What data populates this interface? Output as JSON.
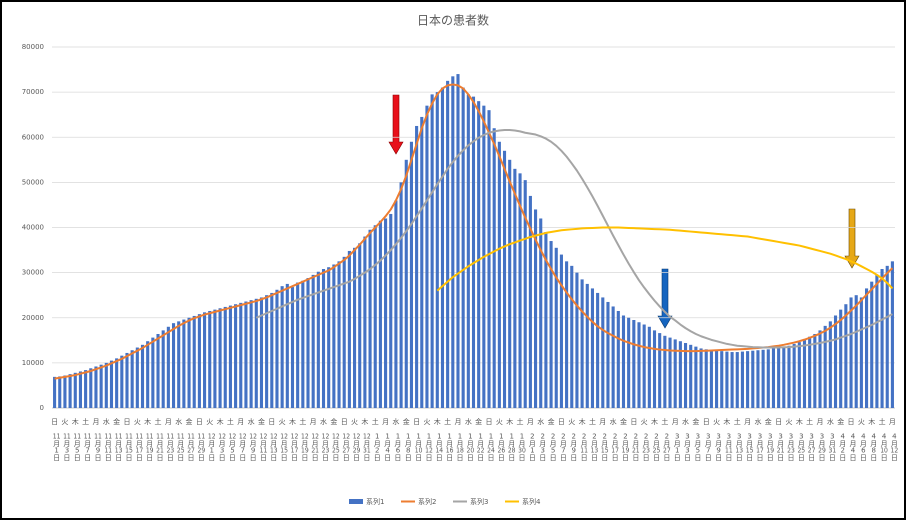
{
  "chart_data": {
    "type": "bar",
    "title": "日本の患者数",
    "categories": [
      "11月1日",
      null,
      "11月3日",
      null,
      "11月5日",
      null,
      "11月7日",
      null,
      "11月9日",
      null,
      "11月11日",
      null,
      "11月13日",
      null,
      "11月15日",
      null,
      "11月17日",
      null,
      "11月19日",
      null,
      "11月21日",
      null,
      "11月23日",
      null,
      "11月25日",
      null,
      "11月27日",
      null,
      "11月29日",
      null,
      "12月1日",
      null,
      "12月3日",
      null,
      "12月5日",
      null,
      "12月7日",
      null,
      "12月9日",
      null,
      "12月11日",
      null,
      "12月13日",
      null,
      "12月15日",
      null,
      "12月17日",
      null,
      "12月19日",
      null,
      "12月21日",
      null,
      "12月23日",
      null,
      "12月25日",
      null,
      "12月27日",
      null,
      "12月29日",
      null,
      "12月31日",
      null,
      "1月2日",
      null,
      "1月4日",
      null,
      "1月6日",
      null,
      "1月8日",
      null,
      "1月10日",
      null,
      "1月12日",
      null,
      "1月14日",
      null,
      "1月16日",
      null,
      "1月18日",
      null,
      "1月20日",
      null,
      "1月22日",
      null,
      "1月24日",
      null,
      "1月26日",
      null,
      "1月28日",
      null,
      "1月30日",
      null,
      "2月1日",
      null,
      "2月3日",
      null,
      "2月5日",
      null,
      "2月7日",
      null,
      "2月9日",
      null,
      "2月11日",
      null,
      "2月13日",
      null,
      "2月15日",
      null,
      "2月17日",
      null,
      "2月19日",
      null,
      "2月21日",
      null,
      "2月23日",
      null,
      "2月25日",
      null,
      "2月27日",
      null,
      "3月1日",
      null,
      "3月3日",
      null,
      "3月5日",
      null,
      "3月7日",
      null,
      "3月9日",
      null,
      "3月11日",
      null,
      "3月13日",
      null,
      "3月15日",
      null,
      "3月17日",
      null,
      "3月19日",
      null,
      "3月21日",
      null,
      "3月23日",
      null,
      "3月25日",
      null,
      "3月27日",
      null,
      "3月29日",
      null,
      "3月31日",
      null,
      "4月2日",
      null,
      "4月4日",
      null,
      "4月6日",
      null,
      "4月8日",
      null,
      "4月10日",
      null,
      "4月12日"
    ],
    "weekdays": [
      "日",
      null,
      "火",
      null,
      "木",
      null,
      "土",
      null,
      "月",
      null,
      "水",
      null,
      "金",
      null,
      "日",
      null,
      "火",
      null,
      "木",
      null,
      "土",
      null,
      "月",
      null,
      "水",
      null,
      "金",
      null,
      "日",
      null,
      "火",
      null,
      "木",
      null,
      "土",
      null,
      "月",
      null,
      "水",
      null,
      "金",
      null,
      "日",
      null,
      "火",
      null,
      "木",
      null,
      "土",
      null,
      "月",
      null,
      "水",
      null,
      "金",
      null,
      "日",
      null,
      "火",
      null,
      "木",
      null,
      "土",
      null,
      "月",
      null,
      "水",
      null,
      "金",
      null,
      "日",
      null,
      "火",
      null,
      "木",
      null,
      "土",
      null,
      "月",
      null,
      "水",
      null,
      "金",
      null,
      "日",
      null,
      "火",
      null,
      "木",
      null,
      "土",
      null,
      "月",
      null,
      "水",
      null,
      "金",
      null,
      "日",
      null,
      "火",
      null,
      "木",
      null,
      "土",
      null,
      "月",
      null,
      "水",
      null,
      "金",
      null,
      "日",
      null,
      "火",
      null,
      "木",
      null,
      "土",
      null,
      "月",
      null,
      "水",
      null,
      "金",
      null,
      "日",
      null,
      "火",
      null,
      "木",
      null,
      "土",
      null,
      "月",
      null,
      "水",
      null,
      "金",
      null,
      "日",
      null,
      "火",
      null,
      "木",
      null,
      "土",
      null,
      "月",
      null,
      "水",
      null,
      "金",
      null,
      "日",
      null,
      "火",
      null,
      "木",
      null,
      "土",
      null,
      "月"
    ],
    "series": [
      {
        "name": "系列1",
        "type": "bar",
        "color": "#4472c4",
        "values": [
          6900,
          7000,
          7200,
          7500,
          7800,
          8100,
          8400,
          8800,
          9200,
          9600,
          10000,
          10500,
          11000,
          11600,
          12200,
          12800,
          13400,
          14000,
          14800,
          15600,
          16400,
          17200,
          18000,
          18800,
          19200,
          19600,
          20000,
          20400,
          20800,
          21200,
          21500,
          21800,
          22100,
          22400,
          22700,
          23000,
          23300,
          23600,
          23900,
          24200,
          24500,
          25000,
          25500,
          26200,
          27000,
          27500,
          26800,
          27800,
          28200,
          28800,
          29500,
          30200,
          30800,
          31200,
          31800,
          32500,
          33500,
          34800,
          35500,
          36500,
          38000,
          39500,
          40500,
          41500,
          42000,
          43000,
          46000,
          50000,
          55000,
          59000,
          62500,
          64500,
          67000,
          69500,
          70000,
          71000,
          72500,
          73500,
          74000,
          71000,
          69500,
          69000,
          68000,
          67000,
          66000,
          62000,
          59000,
          57000,
          55000,
          53000,
          52000,
          50500,
          47000,
          44000,
          42000,
          39000,
          37000,
          35500,
          34000,
          32500,
          31500,
          30000,
          28500,
          27500,
          26500,
          25500,
          24500,
          23500,
          22500,
          21500,
          20500,
          20000,
          19500,
          19000,
          18500,
          18000,
          17200,
          16600,
          16000,
          15600,
          15200,
          14800,
          14400,
          14000,
          13600,
          13200,
          13000,
          12800,
          12700,
          12600,
          12500,
          12400,
          12400,
          12500,
          12600,
          12700,
          12800,
          12900,
          13000,
          13200,
          13400,
          13600,
          13800,
          14200,
          14600,
          15200,
          15800,
          16400,
          17200,
          18200,
          19200,
          20500,
          21800,
          23000,
          24500,
          25000,
          24500,
          26500,
          28000,
          29500,
          30800,
          31500,
          32500
        ]
      },
      {
        "name": "系列2",
        "type": "line",
        "color": "#ed7d31",
        "values": [
          6500,
          6700,
          6900,
          7100,
          7300,
          7600,
          7900,
          8200,
          8600,
          9000,
          9400,
          9900,
          10400,
          10900,
          11500,
          12100,
          12700,
          13300,
          14000,
          14700,
          15400,
          16100,
          16800,
          17500,
          18200,
          18800,
          19400,
          19900,
          20300,
          20700,
          21000,
          21300,
          21600,
          21900,
          22200,
          22500,
          22800,
          23100,
          23400,
          23700,
          24100,
          24500,
          25000,
          25500,
          26000,
          26500,
          27000,
          27500,
          28000,
          28500,
          29000,
          29500,
          30000,
          30500,
          31200,
          32000,
          32800,
          33800,
          35000,
          36200,
          37500,
          38800,
          40000,
          41200,
          42500,
          44000,
          46000,
          48500,
          51500,
          55000,
          58500,
          62000,
          65000,
          67500,
          69500,
          70800,
          71500,
          71700,
          71500,
          70800,
          69500,
          67800,
          65800,
          63500,
          61000,
          58500,
          55800,
          53000,
          50200,
          47500,
          44800,
          42200,
          39700,
          37300,
          35000,
          32800,
          30800,
          28900,
          27200,
          25600,
          24100,
          22700,
          21400,
          20200,
          19100,
          18100,
          17300,
          16600,
          16000,
          15400,
          14900,
          14500,
          14100,
          13800,
          13500,
          13300,
          13100,
          12950,
          12850,
          12750,
          12700,
          12650,
          12600,
          12600,
          12600,
          12650,
          12700,
          12750,
          12800,
          12850,
          12900,
          12950,
          13000,
          13050,
          13100,
          13200,
          13300,
          13400,
          13500,
          13650,
          13800,
          14000,
          14250,
          14500,
          14800,
          15150,
          15550,
          16000,
          16500,
          17100,
          17800,
          18600,
          19500,
          20500,
          21600,
          22700,
          23900,
          25100,
          26300,
          27500,
          28700,
          29900,
          31000
        ]
      },
      {
        "name": "系列3",
        "type": "line",
        "color": "#a5a5a5",
        "values": [
          null,
          null,
          null,
          null,
          null,
          null,
          null,
          null,
          null,
          null,
          null,
          null,
          null,
          null,
          null,
          null,
          null,
          null,
          null,
          null,
          null,
          null,
          null,
          null,
          null,
          null,
          null,
          null,
          null,
          null,
          null,
          null,
          null,
          null,
          null,
          null,
          null,
          null,
          null,
          20000,
          20500,
          21000,
          21500,
          22000,
          22500,
          23000,
          23500,
          24000,
          24400,
          24800,
          25200,
          25600,
          26000,
          26400,
          26800,
          27200,
          27600,
          28000,
          28600,
          29300,
          30000,
          30800,
          31700,
          32700,
          33800,
          35000,
          36300,
          37700,
          39200,
          40800,
          42500,
          44200,
          46000,
          47800,
          49600,
          51300,
          53000,
          54500,
          55900,
          57100,
          58200,
          59100,
          59900,
          60500,
          61000,
          61300,
          61500,
          61600,
          61600,
          61500,
          61300,
          61000,
          60800,
          60600,
          60200,
          59700,
          59000,
          58100,
          57000,
          55700,
          54200,
          52600,
          50800,
          48900,
          46900,
          44800,
          42600,
          40400,
          38200,
          36100,
          34000,
          32000,
          30100,
          28300,
          26700,
          25200,
          23800,
          22500,
          21300,
          20200,
          19400,
          18500,
          17700,
          17000,
          16400,
          15900,
          15500,
          15100,
          14800,
          14500,
          14200,
          14000,
          13800,
          13700,
          13600,
          13500,
          13450,
          13400,
          13400,
          13400,
          13400,
          13450,
          13500,
          13600,
          13700,
          13850,
          14000,
          14200,
          14400,
          14650,
          14900,
          15200,
          15600,
          16000,
          16400,
          16900,
          17400,
          17900,
          18400,
          19000,
          19600,
          20200,
          20800
        ]
      },
      {
        "name": "系列4",
        "type": "line",
        "color": "#ffc000",
        "values": [
          null,
          null,
          null,
          null,
          null,
          null,
          null,
          null,
          null,
          null,
          null,
          null,
          null,
          null,
          null,
          null,
          null,
          null,
          null,
          null,
          null,
          null,
          null,
          null,
          null,
          null,
          null,
          null,
          null,
          null,
          null,
          null,
          null,
          null,
          null,
          null,
          null,
          null,
          null,
          null,
          null,
          null,
          null,
          null,
          null,
          null,
          null,
          null,
          null,
          null,
          null,
          null,
          null,
          null,
          null,
          null,
          null,
          null,
          null,
          null,
          null,
          null,
          null,
          null,
          null,
          null,
          null,
          null,
          null,
          null,
          null,
          null,
          null,
          null,
          26000,
          27000,
          28000,
          29000,
          29800,
          30600,
          31400,
          32100,
          32800,
          33500,
          34100,
          34700,
          35300,
          35800,
          36300,
          36700,
          37100,
          37500,
          37900,
          38200,
          38500,
          38800,
          39000,
          39200,
          39400,
          39500,
          39600,
          39700,
          39800,
          39850,
          39900,
          39950,
          40000,
          40000,
          40000,
          40000,
          39950,
          39900,
          39850,
          39800,
          39750,
          39700,
          39650,
          39600,
          39550,
          39500,
          39400,
          39300,
          39200,
          39100,
          39000,
          38900,
          38800,
          38700,
          38600,
          38500,
          38400,
          38300,
          38200,
          38100,
          38000,
          37800,
          37600,
          37400,
          37200,
          37000,
          36800,
          36600,
          36400,
          36200,
          36000,
          35700,
          35400,
          35100,
          34800,
          34500,
          34200,
          33800,
          33400,
          33000,
          32500,
          32000,
          31400,
          30800,
          30200,
          29500,
          28700,
          27700,
          26500
        ]
      }
    ],
    "ylim": [
      0,
      80000
    ],
    "yticks": [
      0,
      10000,
      20000,
      30000,
      40000,
      50000,
      60000,
      70000,
      80000
    ],
    "grid": true
  }
}
